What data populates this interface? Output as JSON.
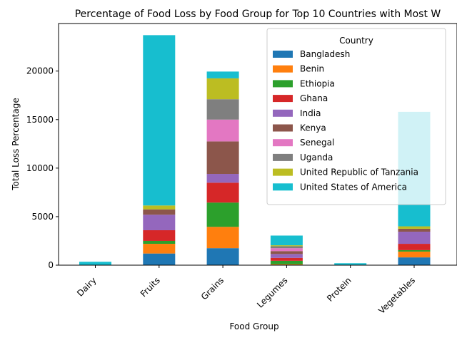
{
  "chart_data": {
    "type": "bar",
    "stacked": true,
    "title": "Percentage of Food Loss by Food Group for Top 10 Countries with Most W",
    "xlabel": "Food Group",
    "ylabel": "Total Loss Percentage",
    "categories": [
      "Dairy",
      "Fruits",
      "Grains",
      "Legumes",
      "Protein",
      "Vegetables"
    ],
    "ylim": [
      0,
      24900
    ],
    "yticks": [
      0,
      5000,
      10000,
      15000,
      20000
    ],
    "ytick_labels": [
      "0",
      "5000",
      "10000",
      "15000",
      "20000"
    ],
    "grid": false,
    "legend": {
      "title": "Country",
      "placement": "top-right"
    },
    "series": [
      {
        "name": "Bangladesh",
        "color": "#1f77b4",
        "values": [
          0,
          1200,
          1750,
          0,
          0,
          800
        ]
      },
      {
        "name": "Benin",
        "color": "#ff7f0e",
        "values": [
          0,
          1000,
          2200,
          100,
          0,
          600
        ]
      },
      {
        "name": "Ethiopia",
        "color": "#2ca02c",
        "values": [
          0,
          300,
          2500,
          350,
          0,
          150
        ]
      },
      {
        "name": "Ghana",
        "color": "#d62728",
        "values": [
          0,
          1100,
          2050,
          300,
          0,
          650
        ]
      },
      {
        "name": "India",
        "color": "#9467bd",
        "values": [
          0,
          1600,
          900,
          400,
          0,
          1250
        ]
      },
      {
        "name": "Kenya",
        "color": "#8c564b",
        "values": [
          0,
          550,
          3350,
          300,
          0,
          300
        ]
      },
      {
        "name": "Senegal",
        "color": "#e377c2",
        "values": [
          0,
          0,
          2250,
          300,
          0,
          0
        ]
      },
      {
        "name": "Uganda",
        "color": "#7f7f7f",
        "values": [
          0,
          0,
          2100,
          200,
          0,
          0
        ]
      },
      {
        "name": "United Republic of Tanzania",
        "color": "#bcbd22",
        "values": [
          0,
          400,
          2150,
          100,
          0,
          250
        ]
      },
      {
        "name": "United States of America",
        "color": "#17becf",
        "values": [
          350,
          17550,
          700,
          1000,
          200,
          11800
        ]
      }
    ]
  }
}
